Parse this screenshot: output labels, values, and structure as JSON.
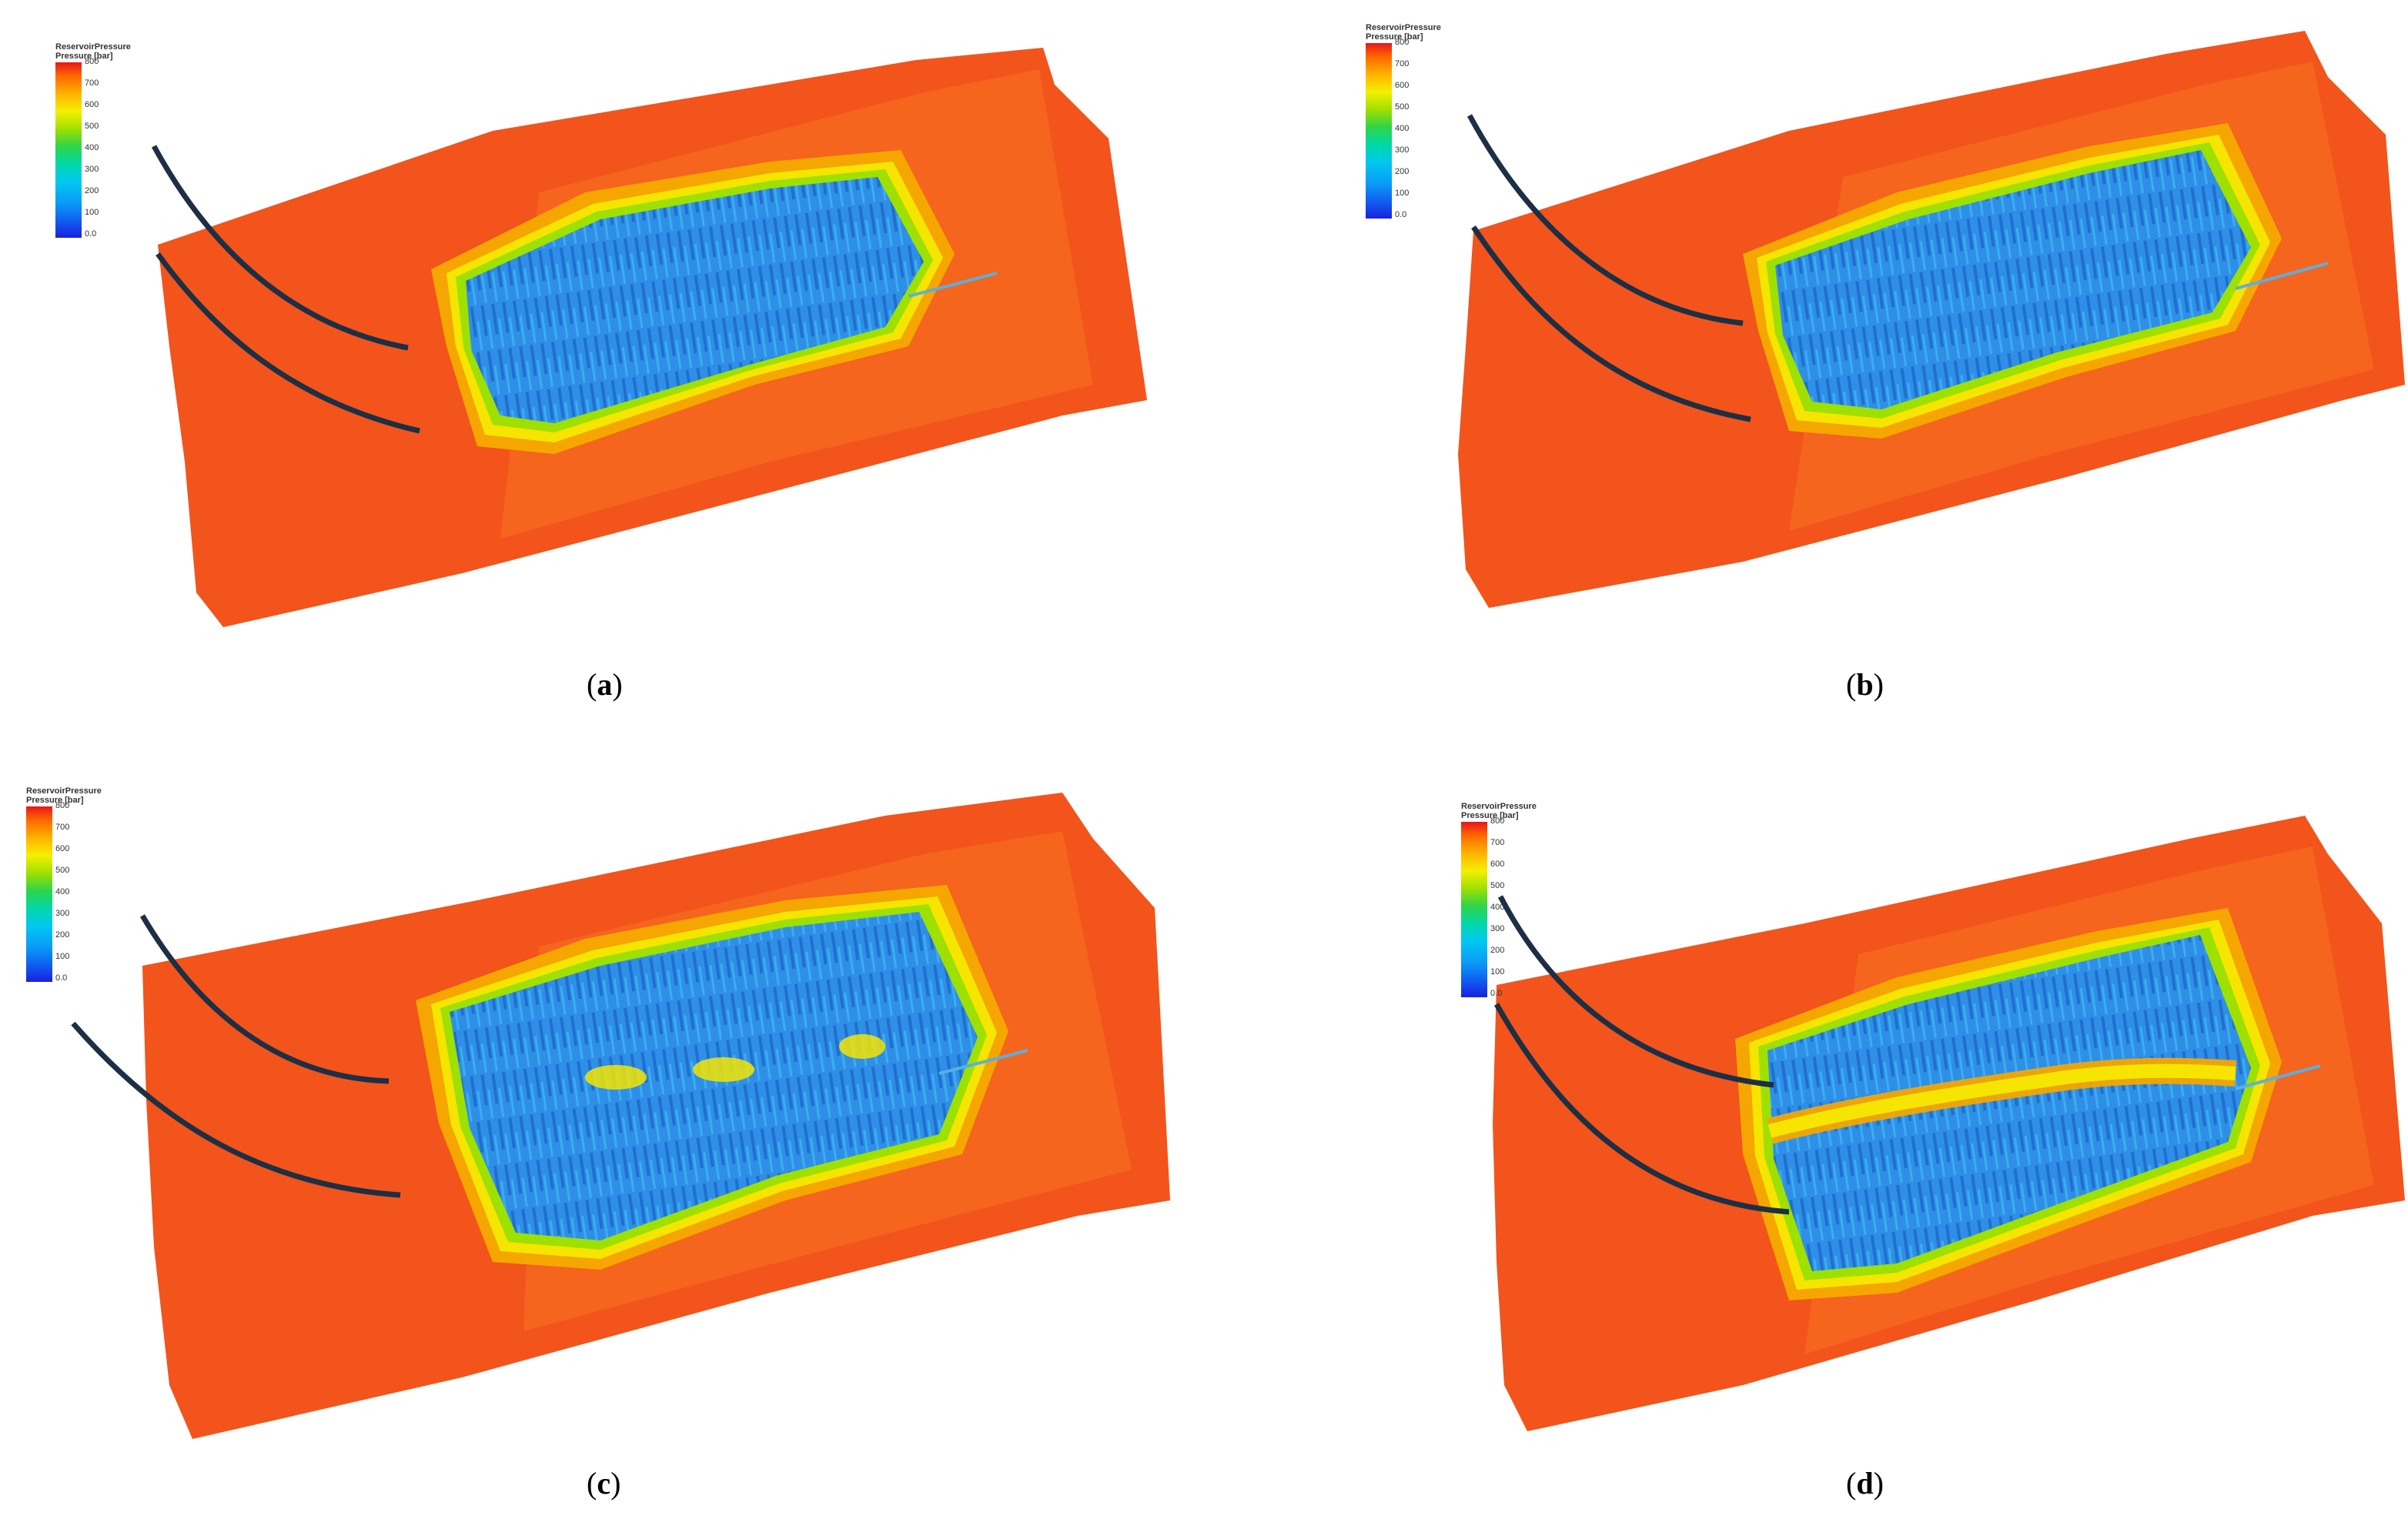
{
  "legend": {
    "title": "ReservoirPressure",
    "subtitle": "Pressure [bar]",
    "ticks": [
      "800",
      "700",
      "600",
      "500",
      "400",
      "300",
      "200",
      "100",
      "0.0"
    ]
  },
  "colors": {
    "high_pressure": "#f25a1e",
    "mid_pressure": "#f6e800",
    "low_pressure": "#2a8ee8",
    "well": "#1c2f44"
  },
  "panels": [
    {
      "label": "a"
    },
    {
      "label": "b"
    },
    {
      "label": "c"
    },
    {
      "label": "d"
    }
  ]
}
